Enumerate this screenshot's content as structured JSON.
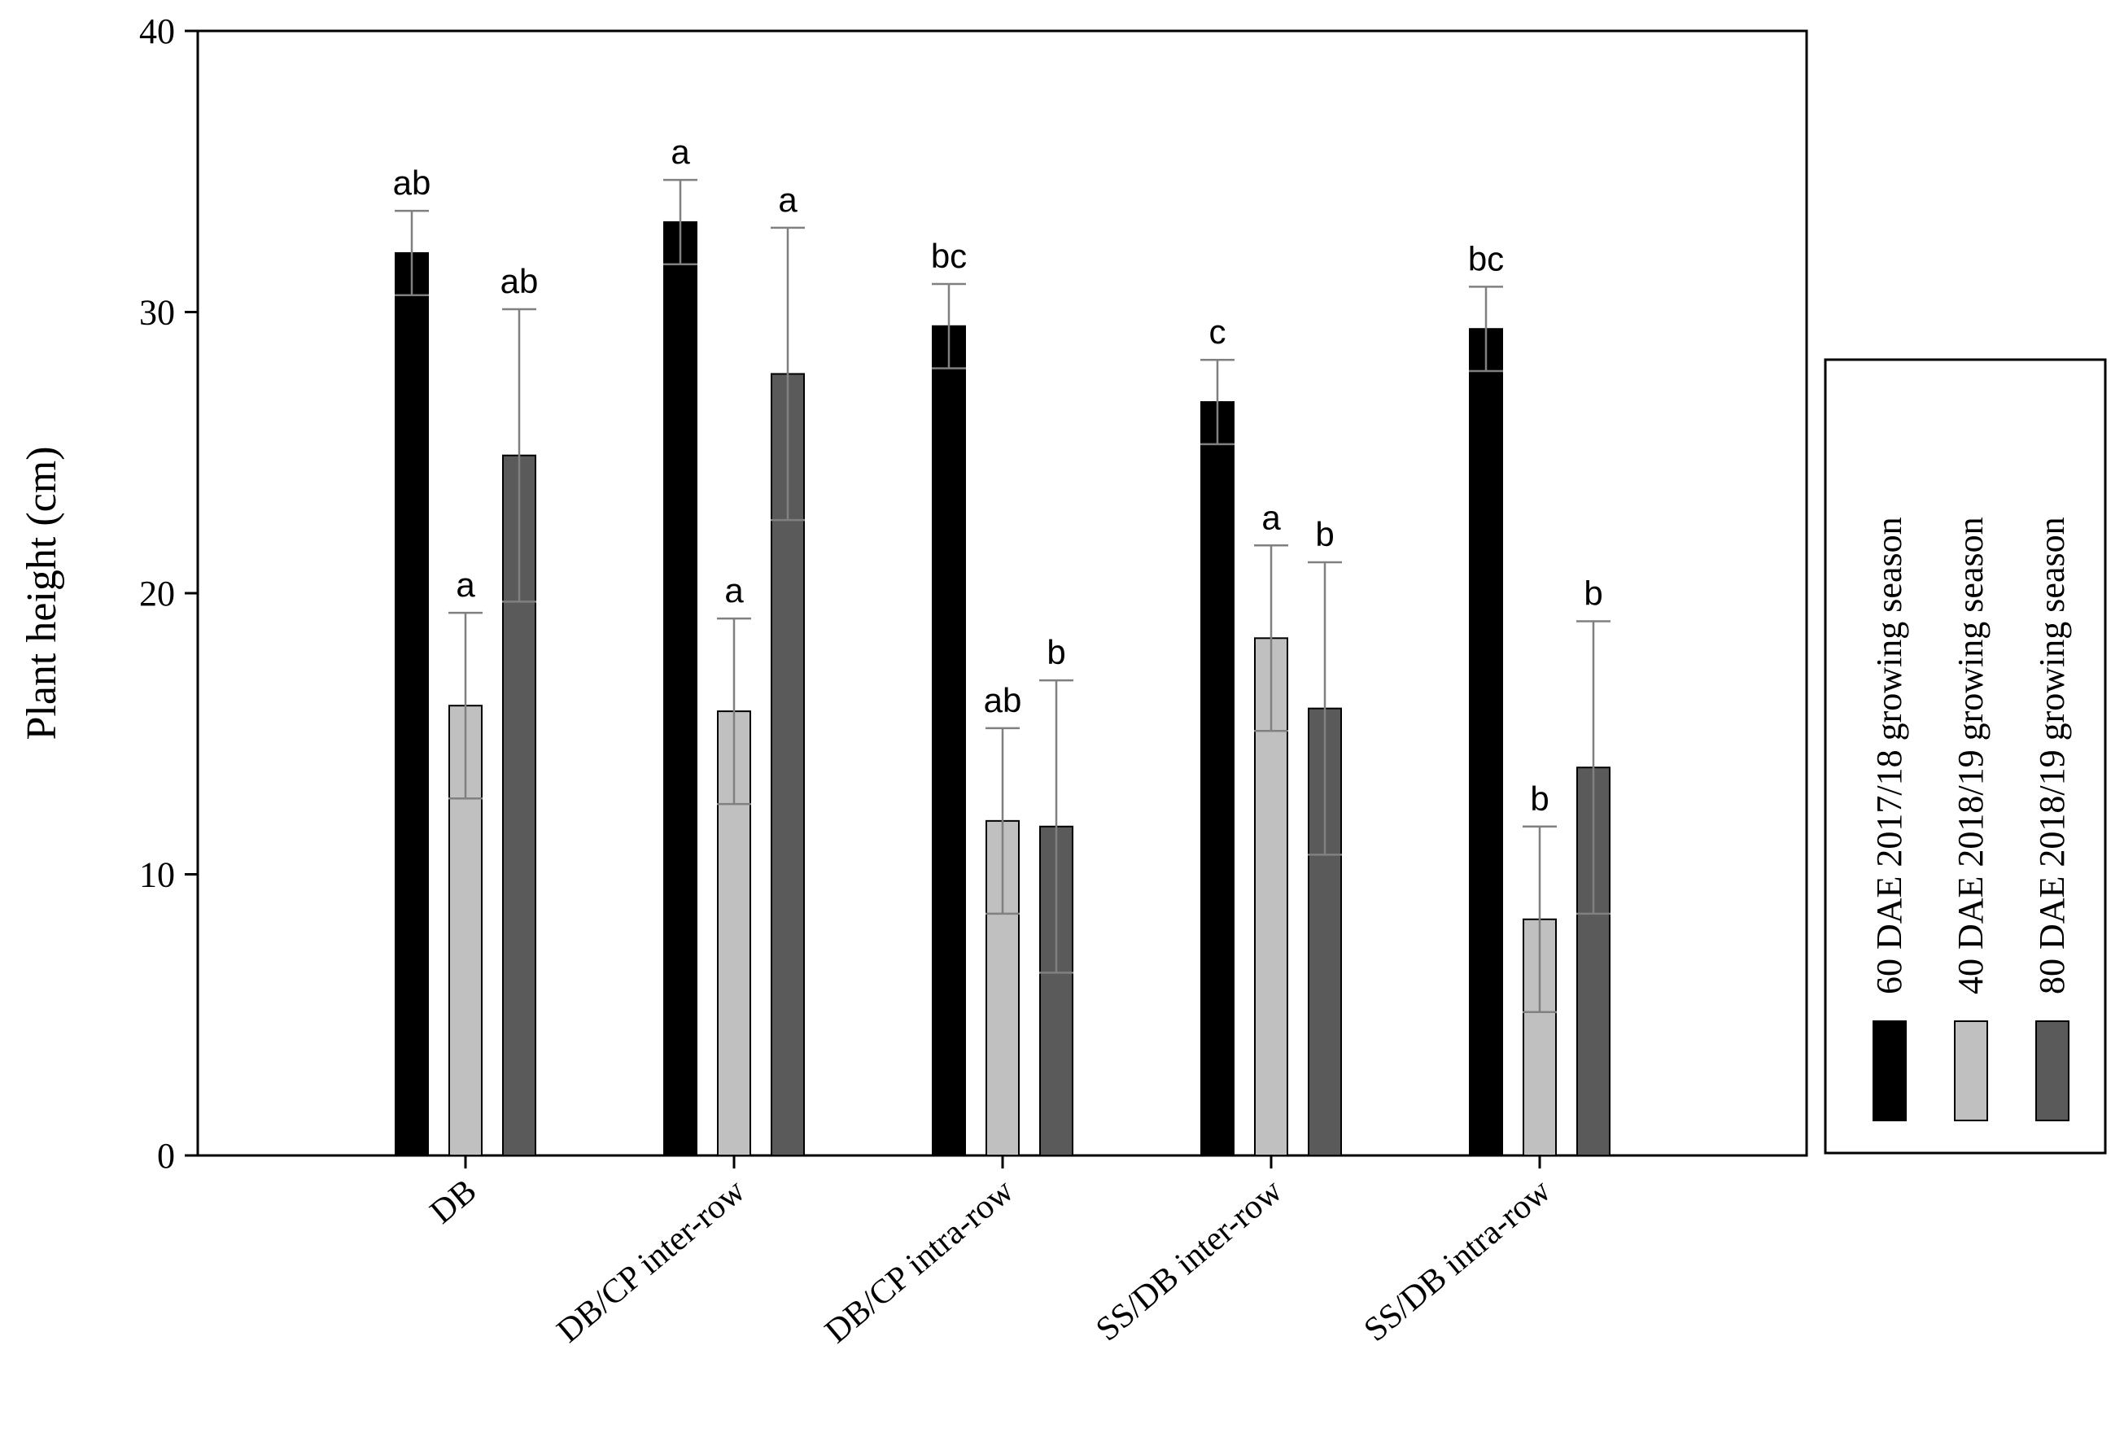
{
  "chart_data": {
    "type": "bar",
    "title": "",
    "xlabel": "",
    "ylabel": "Plant height (cm)",
    "ylim": [
      0,
      40
    ],
    "yticks": [
      0,
      10,
      20,
      30,
      40
    ],
    "grid": false,
    "legend_position": "right",
    "categories": [
      "DB",
      "DB/CP inter-row",
      "DB/CP intra-row",
      "SS/DB inter-row",
      "SS/DB intra-row"
    ],
    "series": [
      {
        "name": "60 DAE 2017/18 growing season",
        "color": "#000000",
        "values": [
          32.1,
          33.2,
          29.5,
          26.8,
          29.4
        ],
        "errors": [
          1.5,
          1.5,
          1.5,
          1.5,
          1.5
        ],
        "labels": [
          "ab",
          "a",
          "bc",
          "c",
          "bc"
        ]
      },
      {
        "name": "40 DAE 2018/19 growing season",
        "color": "#c0c0c0",
        "values": [
          16.0,
          15.8,
          11.9,
          18.4,
          8.4
        ],
        "errors": [
          3.3,
          3.3,
          3.3,
          3.3,
          3.3
        ],
        "labels": [
          "a",
          "a",
          "ab",
          "a",
          "b"
        ]
      },
      {
        "name": "80 DAE 2018/19 growing season",
        "color": "#5a5a5a",
        "values": [
          24.9,
          27.8,
          11.7,
          15.9,
          13.8
        ],
        "errors": [
          5.2,
          5.2,
          5.2,
          5.2,
          5.2
        ],
        "labels": [
          "ab",
          "a",
          "b",
          "b",
          "b"
        ]
      }
    ]
  }
}
